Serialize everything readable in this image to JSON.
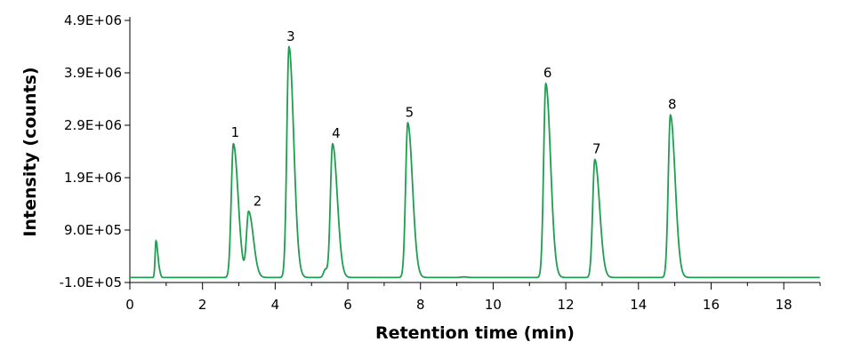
{
  "chart_data": {
    "type": "line",
    "title": "",
    "xlabel": "Retention time (min)",
    "ylabel": "Intensity (counts)",
    "xlim": [
      0,
      19
    ],
    "ylim": [
      -100000,
      4900000
    ],
    "x_ticks": [
      0,
      2,
      4,
      6,
      8,
      10,
      12,
      14,
      16,
      18
    ],
    "x_tick_labels": [
      "0",
      "2",
      "4",
      "6",
      "8",
      "10",
      "12",
      "14",
      "16",
      "18"
    ],
    "y_ticks": [
      -100000,
      900000,
      1900000,
      2900000,
      3900000,
      4900000
    ],
    "y_tick_labels": [
      "-1.0E+05",
      "9.0E+05",
      "1.9E+06",
      "2.9E+06",
      "3.9E+06",
      "4.9E+06"
    ],
    "grid": false,
    "legend": "none",
    "line_color": "#1e9e50",
    "baseline": -5000,
    "peaks": [
      {
        "label": "",
        "rt": 0.72,
        "height": 700000
      },
      {
        "label": "1",
        "rt": 2.85,
        "height": 2550000
      },
      {
        "label": "2",
        "rt": 3.27,
        "height": 1250000
      },
      {
        "label": "3",
        "rt": 4.38,
        "height": 4400000
      },
      {
        "label": "4",
        "rt": 5.58,
        "height": 2550000
      },
      {
        "label": "5",
        "rt": 7.65,
        "height": 2950000
      },
      {
        "label": "6",
        "rt": 11.45,
        "height": 3700000
      },
      {
        "label": "7",
        "rt": 12.8,
        "height": 2250000
      },
      {
        "label": "8",
        "rt": 14.88,
        "height": 3100000
      }
    ]
  }
}
